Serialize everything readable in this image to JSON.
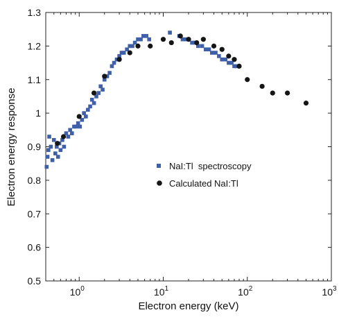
{
  "chart_data": {
    "type": "scatter",
    "xscale": "log",
    "xlim": [
      0.4,
      1000
    ],
    "ylim": [
      0.5,
      1.3
    ],
    "xlabel": "Electron energy (keV)",
    "ylabel": "Electron energy response",
    "grid": false,
    "legend_position": "center-right",
    "y_ticks": [
      "0.5",
      "0.6",
      "0.7",
      "0.8",
      "0.9",
      "1",
      "1.1",
      "1.2",
      "1.3"
    ],
    "x_ticks": [
      {
        "value": 1,
        "base": "10",
        "exp": "0"
      },
      {
        "value": 10,
        "base": "10",
        "exp": "1"
      },
      {
        "value": 100,
        "base": "10",
        "exp": "2"
      },
      {
        "value": 1000,
        "base": "10",
        "exp": "3"
      }
    ],
    "series": [
      {
        "name": "NaI:Tl  spectroscopy",
        "marker": "square",
        "color": "#3f5fa8",
        "points": [
          [
            0.41,
            0.84
          ],
          [
            0.42,
            0.87
          ],
          [
            0.43,
            0.89
          ],
          [
            0.44,
            0.93
          ],
          [
            0.46,
            0.9
          ],
          [
            0.48,
            0.86
          ],
          [
            0.5,
            0.92
          ],
          [
            0.52,
            0.88
          ],
          [
            0.54,
            0.9
          ],
          [
            0.56,
            0.87
          ],
          [
            0.58,
            0.91
          ],
          [
            0.6,
            0.89
          ],
          [
            0.63,
            0.92
          ],
          [
            0.66,
            0.9
          ],
          [
            0.7,
            0.94
          ],
          [
            0.74,
            0.93
          ],
          [
            0.78,
            0.95
          ],
          [
            0.82,
            0.94
          ],
          [
            0.87,
            0.96
          ],
          [
            0.92,
            0.96
          ],
          [
            0.97,
            0.97
          ],
          [
            1.02,
            0.96
          ],
          [
            1.08,
            0.98
          ],
          [
            1.14,
            1.0
          ],
          [
            1.2,
            0.99
          ],
          [
            1.27,
            1.01
          ],
          [
            1.35,
            1.02
          ],
          [
            1.42,
            1.04
          ],
          [
            1.5,
            1.03
          ],
          [
            1.6,
            1.05
          ],
          [
            1.7,
            1.06
          ],
          [
            1.8,
            1.08
          ],
          [
            1.9,
            1.07
          ],
          [
            2.0,
            1.1
          ],
          [
            2.15,
            1.11
          ],
          [
            2.3,
            1.12
          ],
          [
            2.45,
            1.14
          ],
          [
            2.6,
            1.15
          ],
          [
            2.8,
            1.16
          ],
          [
            3.0,
            1.17
          ],
          [
            3.2,
            1.18
          ],
          [
            3.4,
            1.18
          ],
          [
            3.7,
            1.19
          ],
          [
            4.0,
            1.2
          ],
          [
            4.3,
            1.2
          ],
          [
            4.6,
            1.21
          ],
          [
            5.0,
            1.22
          ],
          [
            5.4,
            1.22
          ],
          [
            5.8,
            1.23
          ],
          [
            6.3,
            1.23
          ],
          [
            6.8,
            1.22
          ],
          [
            12.0,
            1.24
          ],
          [
            15.5,
            1.23
          ],
          [
            17.0,
            1.22
          ],
          [
            18.5,
            1.22
          ],
          [
            20.0,
            1.22
          ],
          [
            22.0,
            1.21
          ],
          [
            24.0,
            1.21
          ],
          [
            26.0,
            1.2
          ],
          [
            29.0,
            1.2
          ],
          [
            32.0,
            1.19
          ],
          [
            35.0,
            1.19
          ],
          [
            38.0,
            1.18
          ],
          [
            42.0,
            1.18
          ],
          [
            46.0,
            1.17
          ],
          [
            50.0,
            1.16
          ],
          [
            55.0,
            1.16
          ],
          [
            60.0,
            1.15
          ],
          [
            65.0,
            1.15
          ],
          [
            70.0,
            1.14
          ],
          [
            75.0,
            1.14
          ]
        ]
      },
      {
        "name": "Calculated NaI:Tl",
        "marker": "circle",
        "color": "#151515",
        "points": [
          [
            0.55,
            0.91
          ],
          [
            0.65,
            0.93
          ],
          [
            1.0,
            0.99
          ],
          [
            1.5,
            1.06
          ],
          [
            2.0,
            1.11
          ],
          [
            3.0,
            1.16
          ],
          [
            4.0,
            1.18
          ],
          [
            5.0,
            1.2
          ],
          [
            7.0,
            1.2
          ],
          [
            10.0,
            1.22
          ],
          [
            12.5,
            1.21
          ],
          [
            16.0,
            1.23
          ],
          [
            20.0,
            1.22
          ],
          [
            25.0,
            1.21
          ],
          [
            30.0,
            1.22
          ],
          [
            40.0,
            1.2
          ],
          [
            50.0,
            1.19
          ],
          [
            60.0,
            1.17
          ],
          [
            70.0,
            1.16
          ],
          [
            80.0,
            1.14
          ],
          [
            100.0,
            1.1
          ],
          [
            150.0,
            1.08
          ],
          [
            200.0,
            1.06
          ],
          [
            300.0,
            1.06
          ],
          [
            500.0,
            1.03
          ]
        ]
      }
    ]
  }
}
